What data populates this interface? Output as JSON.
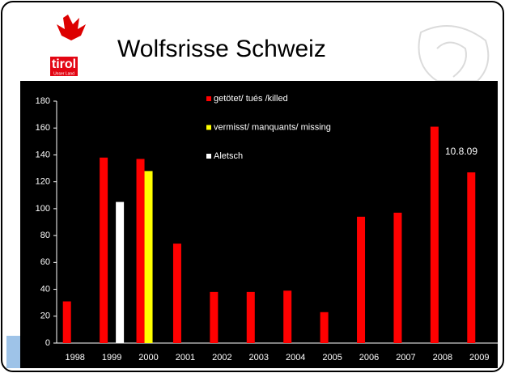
{
  "logo": {
    "text": "tirol",
    "subtext": "Unser Land"
  },
  "chart_data": {
    "type": "bar",
    "title": "Wolfsrisse Schweiz",
    "categories": [
      "1998",
      "1999",
      "2000",
      "2001",
      "2002",
      "2003",
      "2004",
      "2005",
      "2006",
      "2007",
      "2008",
      "2009"
    ],
    "series": [
      {
        "name": "getötet/ tués /killed",
        "color": "#ff0000",
        "values": [
          31,
          138,
          137,
          74,
          38,
          38,
          39,
          23,
          94,
          97,
          161,
          127
        ]
      },
      {
        "name": "vermisst/ manquants/ missing",
        "color": "#ffff00",
        "values": [
          null,
          null,
          128,
          null,
          null,
          null,
          null,
          null,
          null,
          null,
          null,
          null
        ]
      },
      {
        "name": "Aletsch",
        "color": "#ffffff",
        "values": [
          null,
          105,
          null,
          null,
          null,
          null,
          null,
          null,
          null,
          null,
          null,
          null
        ]
      }
    ],
    "annotation": "10.8.09",
    "ylim": [
      0,
      180
    ],
    "yticks": [
      0,
      20,
      40,
      60,
      80,
      100,
      120,
      140,
      160,
      180
    ],
    "grid": false
  }
}
